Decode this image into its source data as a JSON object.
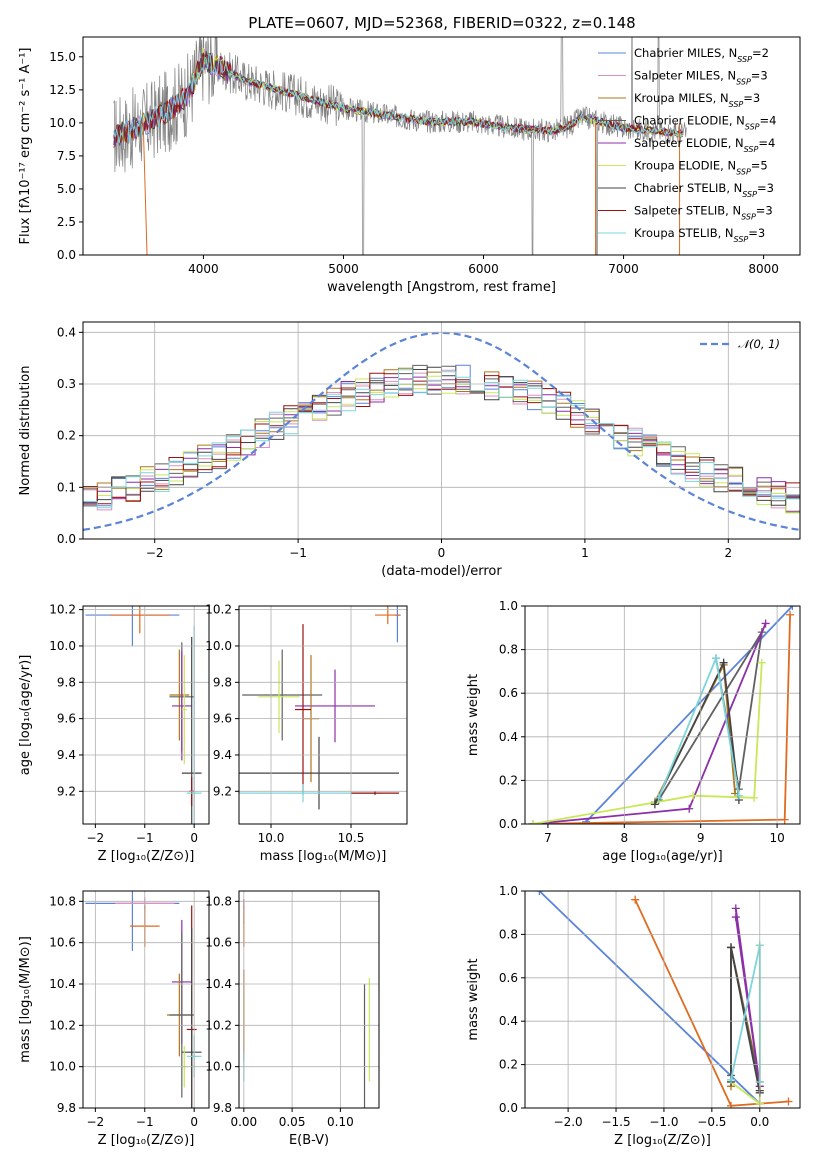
{
  "figure": {
    "title": "PLATE=0607, MJD=52368, FIBERID=0322, z=0.148"
  },
  "colors": {
    "spectrum": "#808080",
    "chabrier_miles": "#5b84d8",
    "salpeter_miles": "#e08fc0",
    "kroupa_miles": "#b0761a",
    "chabrier_elodie": "#606060",
    "salpeter_elodie": "#8c2fa8",
    "kroupa_elodie": "#c8e85a",
    "chabrier_stelib": "#444444",
    "salpeter_stelib": "#9c1010",
    "kroupa_stelib": "#7ad6dc",
    "orange": "#e06a20",
    "normal": "#5b84d8"
  },
  "models": [
    {
      "key": "chabrier_miles",
      "label": "Chabrier MILES, N",
      "n": "2"
    },
    {
      "key": "salpeter_miles",
      "label": "Salpeter MILES, N",
      "n": "3"
    },
    {
      "key": "kroupa_miles",
      "label": "Kroupa MILES, N",
      "n": "3"
    },
    {
      "key": "chabrier_elodie",
      "label": "Chabrier ELODIE, N",
      "n": "4"
    },
    {
      "key": "salpeter_elodie",
      "label": "Salpeter ELODIE, N",
      "n": "4"
    },
    {
      "key": "kroupa_elodie",
      "label": "Kroupa ELODIE, N",
      "n": "5"
    },
    {
      "key": "chabrier_stelib",
      "label": "Chabrier STELIB, N",
      "n": "3"
    },
    {
      "key": "salpeter_stelib",
      "label": "Salpeter STELIB, N",
      "n": "3"
    },
    {
      "key": "kroupa_stelib",
      "label": "Kroupa STELIB, N",
      "n": "3"
    }
  ],
  "ssp_subscript": "SSP",
  "chart_data": [
    {
      "id": "spectrum",
      "type": "line",
      "xlabel": "wavelength [Angstrom, rest frame]",
      "ylabel": "Flux [fλ10⁻¹⁷ erg cm⁻² s⁻¹ A⁻¹]",
      "xlim": [
        3140,
        8260
      ],
      "ylim": [
        0,
        16.5
      ],
      "xticks": [
        4000,
        5000,
        6000,
        7000,
        8000
      ],
      "yticks": [
        0.0,
        2.5,
        5.0,
        7.5,
        10.0,
        12.5,
        15.0
      ],
      "continuum": {
        "x": [
          3360,
          3450,
          3600,
          3700,
          3800,
          3900,
          3950,
          4000,
          4100,
          4300,
          4500,
          4800,
          5000,
          5300,
          5600,
          5900,
          6200,
          6500,
          6600,
          6700,
          6800,
          7000,
          7200,
          7400
        ],
        "y": [
          9.0,
          9.3,
          10.0,
          10.6,
          11.3,
          12.3,
          13.6,
          14.8,
          14.3,
          13.2,
          12.6,
          11.7,
          11.1,
          10.6,
          10.1,
          10.1,
          9.6,
          9.4,
          9.7,
          10.4,
          10.2,
          9.6,
          9.4,
          9.2
        ]
      }
    },
    {
      "id": "residuals",
      "type": "step",
      "xlabel": "(data-model)/error",
      "ylabel": "Normed distribution",
      "xlim": [
        -2.5,
        2.5
      ],
      "ylim": [
        0,
        0.42
      ],
      "xticks": [
        -2,
        -1,
        0,
        1,
        2
      ],
      "yticks": [
        0.0,
        0.1,
        0.2,
        0.3,
        0.4
      ],
      "legend": "𝒩(0, 1)",
      "bin_width": 0.1
    },
    {
      "id": "age_vs_Z",
      "type": "errorbar",
      "xlabel": "Z [log₁₀(Z/Z⊙)]",
      "ylabel": "age  [log₁₀(age/yr)]",
      "xlim": [
        -2.25,
        0.3
      ],
      "ylim": [
        9.02,
        10.22
      ],
      "xticks": [
        -2,
        -1,
        0
      ],
      "yticks": [
        9.2,
        9.4,
        9.6,
        9.8,
        10.0,
        10.2
      ],
      "points": [
        {
          "c": "chabrier_miles",
          "x": -1.25,
          "xerr": 0.95,
          "y": 10.17,
          "yerr": 0.17
        },
        {
          "c": "orange",
          "x": -1.1,
          "xerr": 0.6,
          "y": 10.17,
          "yerr": 0.1
        },
        {
          "c": "kroupa_miles",
          "x": -0.3,
          "xerr": 0.2,
          "y": 9.73,
          "yerr": 0.25
        },
        {
          "c": "chabrier_elodie",
          "x": -0.25,
          "xerr": 0.25,
          "y": 9.72,
          "yerr": 0.3
        },
        {
          "c": "salpeter_elodie",
          "x": -0.25,
          "xerr": 0.2,
          "y": 9.67,
          "yerr": 0.3
        },
        {
          "c": "kroupa_elodie",
          "x": -0.2,
          "xerr": 0.05,
          "y": 9.65,
          "yerr": 0.3
        },
        {
          "c": "chabrier_stelib",
          "x": -0.05,
          "xerr": 0.2,
          "y": 9.3,
          "yerr": 0.75
        },
        {
          "c": "salpeter_stelib",
          "x": -0.05,
          "xerr": 0.05,
          "y": 9.2,
          "yerr": 0.08
        },
        {
          "c": "kroupa_stelib",
          "x": 0.0,
          "xerr": 0.15,
          "y": 9.19,
          "yerr": 0.92
        }
      ]
    },
    {
      "id": "age_vs_mass",
      "type": "errorbar",
      "xlabel": "mass [log₁₀(M/M⊙)]",
      "ylabel": "",
      "xlim": [
        9.8,
        10.85
      ],
      "ylim": [
        9.02,
        10.22
      ],
      "xticks": [
        10.0,
        10.5
      ],
      "yticks": [
        9.2,
        9.4,
        9.6,
        9.8,
        10.0,
        10.2
      ],
      "points": [
        {
          "c": "chabrier_miles",
          "x": 10.79,
          "xerr": 0.02,
          "y": 10.17,
          "yerr": 0.15
        },
        {
          "c": "orange",
          "x": 10.73,
          "xerr": 0.08,
          "y": 10.17,
          "yerr": 0.05
        },
        {
          "c": "chabrier_elodie",
          "x": 10.07,
          "xerr": 0.25,
          "y": 9.73,
          "yerr": 0.25
        },
        {
          "c": "kroupa_elodie",
          "x": 10.05,
          "xerr": 0.13,
          "y": 9.72,
          "yerr": 0.2
        },
        {
          "c": "salpeter_elodie",
          "x": 10.4,
          "xerr": 0.25,
          "y": 9.67,
          "yerr": 0.2
        },
        {
          "c": "kroupa_miles",
          "x": 10.25,
          "xerr": 0.05,
          "y": 9.6,
          "yerr": 0.35
        },
        {
          "c": "chabrier_stelib",
          "x": 10.3,
          "xerr": 0.5,
          "y": 9.3,
          "yerr": 0.2
        },
        {
          "c": "salpeter_stelib",
          "x": 10.2,
          "xerr": 0.05,
          "y": 9.65,
          "yerr": 0.47
        },
        {
          "c": "kroupa_stelib",
          "x": 10.2,
          "xerr": 0.5,
          "y": 9.19,
          "yerr": 0.05
        },
        {
          "c": "salpeter_stelib",
          "x": 10.65,
          "xerr": 0.15,
          "y": 9.19,
          "yerr": 0.01
        }
      ]
    },
    {
      "id": "weight_vs_age",
      "type": "line",
      "xlabel": "age  [log₁₀(age/yr)]",
      "ylabel": "mass weight",
      "xlim": [
        6.7,
        10.3
      ],
      "ylim": [
        0,
        1.0
      ],
      "xticks": [
        7,
        8,
        9,
        10
      ],
      "yticks": [
        0.0,
        0.2,
        0.4,
        0.6,
        0.8,
        1.0
      ],
      "series": [
        {
          "c": "chabrier_miles",
          "x": [
            7.5,
            10.2
          ],
          "y": [
            0.01,
            1.0
          ]
        },
        {
          "c": "orange",
          "x": [
            6.8,
            10.1,
            10.17
          ],
          "y": [
            0.0,
            0.02,
            0.96
          ]
        },
        {
          "c": "kroupa_miles",
          "x": [
            8.4,
            9.3,
            9.45
          ],
          "y": [
            0.1,
            0.73,
            0.14
          ]
        },
        {
          "c": "chabrier_elodie",
          "x": [
            8.45,
            9.8,
            9.5,
            9.2
          ],
          "y": [
            0.11,
            0.88,
            0.16,
            0.76
          ]
        },
        {
          "c": "salpeter_elodie",
          "x": [
            6.8,
            8.85,
            9.85
          ],
          "y": [
            0.0,
            0.07,
            0.92
          ]
        },
        {
          "c": "kroupa_elodie",
          "x": [
            6.8,
            8.9,
            9.7,
            9.8
          ],
          "y": [
            0.0,
            0.13,
            0.12,
            0.74
          ]
        },
        {
          "c": "chabrier_stelib",
          "x": [
            8.4,
            9.3,
            9.5
          ],
          "y": [
            0.09,
            0.74,
            0.11
          ]
        },
        {
          "c": "kroupa_stelib",
          "x": [
            8.45,
            9.2,
            9.5
          ],
          "y": [
            0.12,
            0.76,
            0.13
          ]
        }
      ]
    },
    {
      "id": "mass_vs_Z",
      "type": "errorbar",
      "xlabel": "Z [log₁₀(Z/Z⊙)]",
      "ylabel": "mass [log₁₀(M/M⊙)]",
      "xlim": [
        -2.25,
        0.3
      ],
      "ylim": [
        9.8,
        10.85
      ],
      "xticks": [
        -2,
        -1,
        0
      ],
      "yticks": [
        9.8,
        10.0,
        10.2,
        10.4,
        10.6,
        10.8
      ],
      "points": [
        {
          "c": "chabrier_miles",
          "x": -1.25,
          "xerr": 0.95,
          "y": 10.79,
          "yerr": 0.23
        },
        {
          "c": "salpeter_miles",
          "x": -1.0,
          "xerr": 0.6,
          "y": 10.79,
          "yerr": 0.03
        },
        {
          "c": "orange",
          "x": -1.0,
          "xerr": 0.3,
          "y": 10.68,
          "yerr": 0.1
        },
        {
          "c": "salpeter_elodie",
          "x": -0.25,
          "xerr": 0.2,
          "y": 10.41,
          "yerr": 0.3
        },
        {
          "c": "kroupa_miles",
          "x": -0.3,
          "xerr": 0.25,
          "y": 10.25,
          "yerr": 0.2
        },
        {
          "c": "chabrier_elodie",
          "x": -0.25,
          "xerr": 0.25,
          "y": 10.25,
          "yerr": 0.4
        },
        {
          "c": "salpeter_stelib",
          "x": -0.05,
          "xerr": 0.1,
          "y": 10.18,
          "yerr": 0.6
        },
        {
          "c": "chabrier_stelib",
          "x": -0.05,
          "xerr": 0.2,
          "y": 10.07,
          "yerr": 0.6
        },
        {
          "c": "kroupa_stelib",
          "x": 0.0,
          "xerr": 0.15,
          "y": 10.05,
          "yerr": 0.1
        },
        {
          "c": "kroupa_elodie",
          "x": -0.2,
          "xerr": 0.05,
          "y": 10.0,
          "yerr": 0.1
        }
      ]
    },
    {
      "id": "mass_vs_ebv",
      "type": "errorbar",
      "xlabel": "E(B-V)",
      "ylabel": "",
      "xlim": [
        -0.005,
        0.14
      ],
      "ylim": [
        9.8,
        10.85
      ],
      "xticks": [
        0.0,
        0.05,
        0.1
      ],
      "yticks": [
        9.8,
        10.0,
        10.2,
        10.4,
        10.6,
        10.8
      ],
      "points": [
        {
          "c": "salpeter_stelib",
          "x": 0.0,
          "xerr": 0.0,
          "y": 10.79,
          "yerr": 0.02
        },
        {
          "c": "salpeter_miles",
          "x": 0.0,
          "xerr": 0.0,
          "y": 10.75,
          "yerr": 0.06
        },
        {
          "c": "orange",
          "x": 0.0,
          "xerr": 0.0,
          "y": 10.68,
          "yerr": 0.1
        },
        {
          "c": "kroupa_miles",
          "x": 0.0,
          "xerr": 0.0,
          "y": 10.25,
          "yerr": 0.22
        },
        {
          "c": "kroupa_stelib",
          "x": 0.0,
          "xerr": 0.0,
          "y": 10.0,
          "yerr": 0.07
        },
        {
          "c": "kroupa_elodie",
          "x": 0.13,
          "xerr": 0.0,
          "y": 10.18,
          "yerr": 0.25
        },
        {
          "c": "chabrier_elodie",
          "x": 0.125,
          "xerr": 0.0,
          "y": 10.1,
          "yerr": 0.3
        }
      ]
    },
    {
      "id": "weight_vs_Z",
      "type": "line",
      "xlabel": "Z [log₁₀(Z/Z⊙)]",
      "ylabel": "mass weight",
      "xlim": [
        -2.45,
        0.42
      ],
      "ylim": [
        0,
        1.0
      ],
      "xticks": [
        -2.0,
        -1.5,
        -1.0,
        -0.5,
        0.0
      ],
      "yticks": [
        0.0,
        0.2,
        0.4,
        0.6,
        0.8,
        1.0
      ],
      "series": [
        {
          "c": "chabrier_miles",
          "x": [
            -2.3,
            0.0
          ],
          "y": [
            1.0,
            0.02
          ]
        },
        {
          "c": "orange",
          "x": [
            -1.3,
            -0.3,
            0.3
          ],
          "y": [
            0.96,
            0.01,
            0.03
          ]
        },
        {
          "c": "kroupa_miles",
          "x": [
            -0.3,
            -0.3,
            0.0
          ],
          "y": [
            0.1,
            0.74,
            0.12
          ]
        },
        {
          "c": "chabrier_elodie",
          "x": [
            -0.3,
            -0.3,
            0.0
          ],
          "y": [
            0.15,
            0.74,
            0.1
          ]
        },
        {
          "c": "salpeter_elodie",
          "x": [
            -0.25,
            0.0,
            -0.25
          ],
          "y": [
            0.92,
            0.1,
            0.88
          ]
        },
        {
          "c": "kroupa_elodie",
          "x": [
            -0.3,
            0.0,
            0.0
          ],
          "y": [
            0.12,
            0.02,
            0.75
          ]
        },
        {
          "c": "chabrier_stelib",
          "x": [
            -0.3,
            -0.3,
            0.0,
            0.0
          ],
          "y": [
            0.12,
            0.74,
            0.07,
            0.08
          ]
        },
        {
          "c": "kroupa_stelib",
          "x": [
            -0.3,
            0.0,
            0.0
          ],
          "y": [
            0.13,
            0.75,
            0.12
          ]
        }
      ]
    }
  ]
}
